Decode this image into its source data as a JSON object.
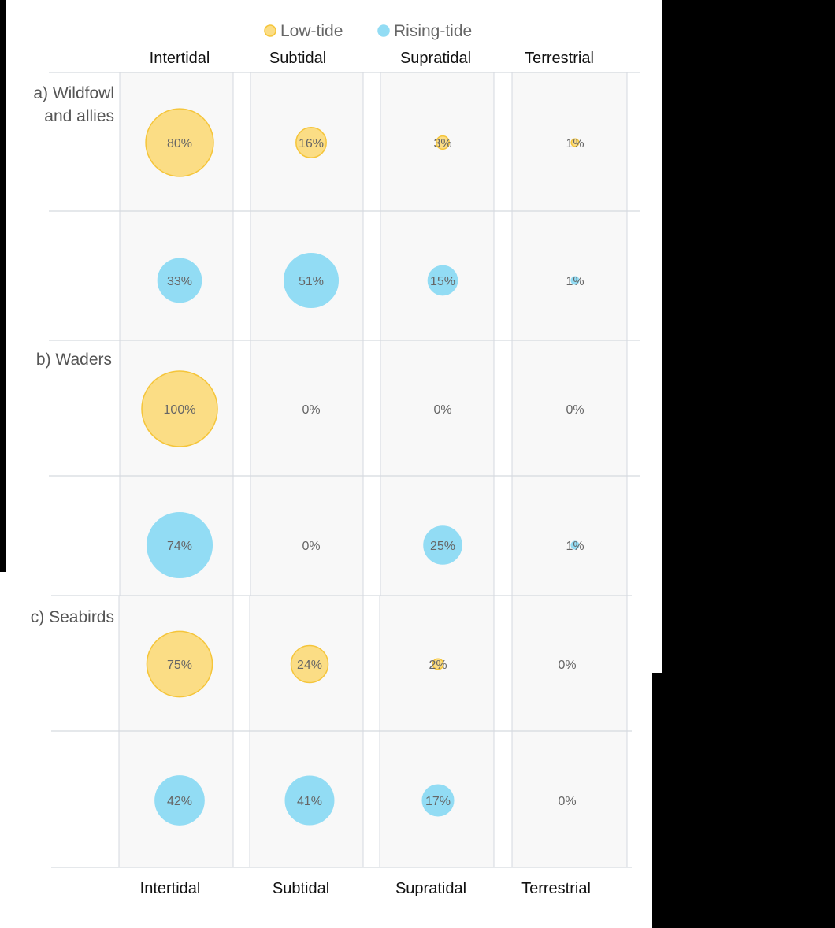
{
  "chart_data": {
    "type": "bubble-grid",
    "legend": {
      "placement": "top-center",
      "entries": [
        {
          "key": "low",
          "label": "Low-tide"
        },
        {
          "key": "rising",
          "label": "Rising-tide"
        }
      ]
    },
    "categories": [
      "Intertidal",
      "Subtidal",
      "Supratidal",
      "Terrestrial"
    ],
    "panels": [
      {
        "label": [
          "a) Wildfowl",
          "and allies"
        ],
        "series": [
          {
            "tide": "low",
            "labels": [
              "80%",
              "16%",
              "3%",
              "1%"
            ],
            "values": [
              80,
              16,
              3,
              1
            ]
          },
          {
            "tide": "rising",
            "labels": [
              "33%",
              "51%",
              "15%",
              "1%"
            ],
            "values": [
              33,
              51,
              15,
              1
            ]
          }
        ]
      },
      {
        "label": [
          "b) Waders"
        ],
        "series": [
          {
            "tide": "low",
            "labels": [
              "100%",
              "0%",
              "0%",
              "0%"
            ],
            "values": [
              100,
              0,
              0,
              0
            ]
          },
          {
            "tide": "rising",
            "labels": [
              "74%",
              "0%",
              "25%",
              "1%"
            ],
            "values": [
              74,
              0,
              25,
              1
            ]
          }
        ]
      },
      {
        "label": [
          "c) Seabirds"
        ],
        "series": [
          {
            "tide": "low",
            "labels": [
              "75%",
              "24%",
              "2%",
              "0%"
            ],
            "values": [
              75,
              24,
              2,
              0
            ]
          },
          {
            "tide": "rising",
            "labels": [
              "42%",
              "41%",
              "17%",
              "0%"
            ],
            "values": [
              42,
              41,
              17,
              0
            ]
          }
        ]
      }
    ],
    "colors": {
      "low_fill": "#fbdd85",
      "low_stroke": "#f5c53a",
      "rising_fill": "#92dcf4",
      "rising_stroke": "#92dcf4",
      "cell_bg": "#f8f8f8",
      "grid": "#d5d9df",
      "text": "#666666",
      "label": "#333333"
    }
  }
}
